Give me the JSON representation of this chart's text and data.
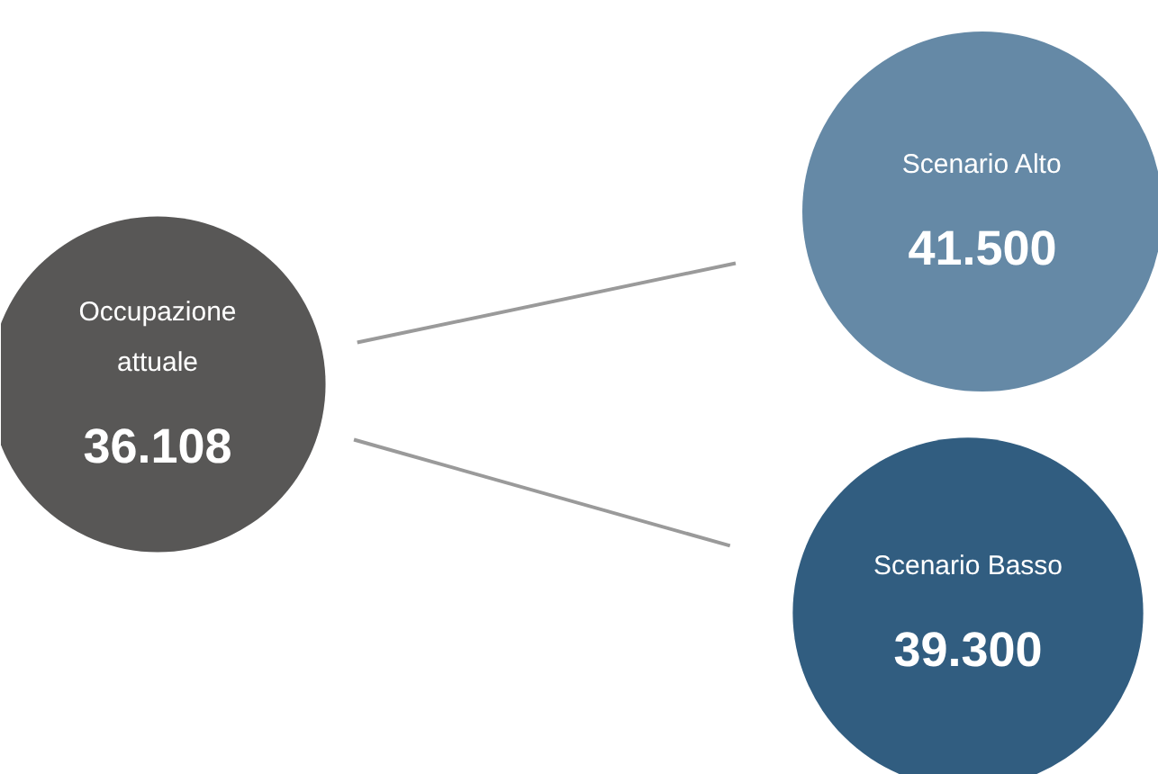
{
  "chart_data": {
    "type": "other",
    "categories": [
      "Occupazione attuale",
      "Scenario Alto",
      "Scenario Basso"
    ],
    "values": [
      36108,
      41500,
      39300
    ],
    "value_labels": [
      "36.108",
      "41.500",
      "39.300"
    ],
    "colors": [
      "#585756",
      "#6589a6",
      "#315d80"
    ]
  }
}
